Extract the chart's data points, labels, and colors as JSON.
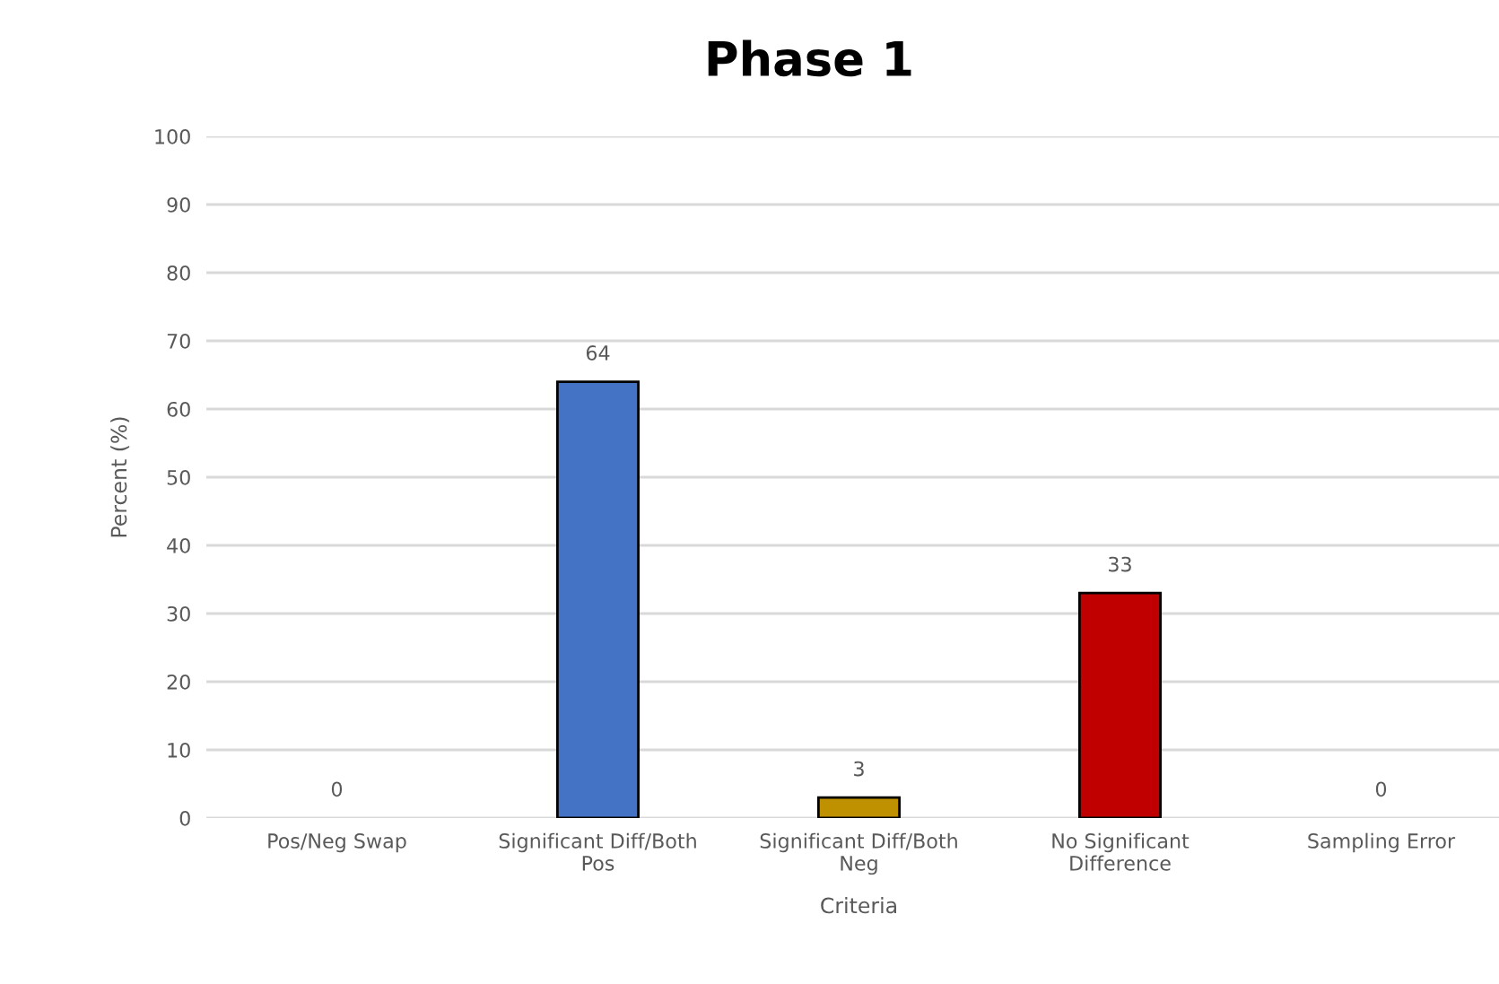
{
  "chart_data": {
    "type": "bar",
    "title": "Phase 1",
    "xlabel": "Criteria",
    "ylabel": "Percent (%)",
    "categories": [
      "Pos/Neg Swap",
      "Significant Diff/Both Pos",
      "Significant Diff/Both Neg",
      "No Significant Difference",
      "Sampling Error"
    ],
    "values": [
      0,
      64,
      3,
      33,
      0
    ],
    "colors": [
      "#4472c4",
      "#4472c4",
      "#bf9000",
      "#c00000",
      "#4472c4"
    ],
    "ylim": [
      0,
      100
    ],
    "yticks": [
      0,
      10,
      20,
      30,
      40,
      50,
      60,
      70,
      80,
      90,
      100
    ],
    "grid": "y",
    "data_labels": true
  }
}
